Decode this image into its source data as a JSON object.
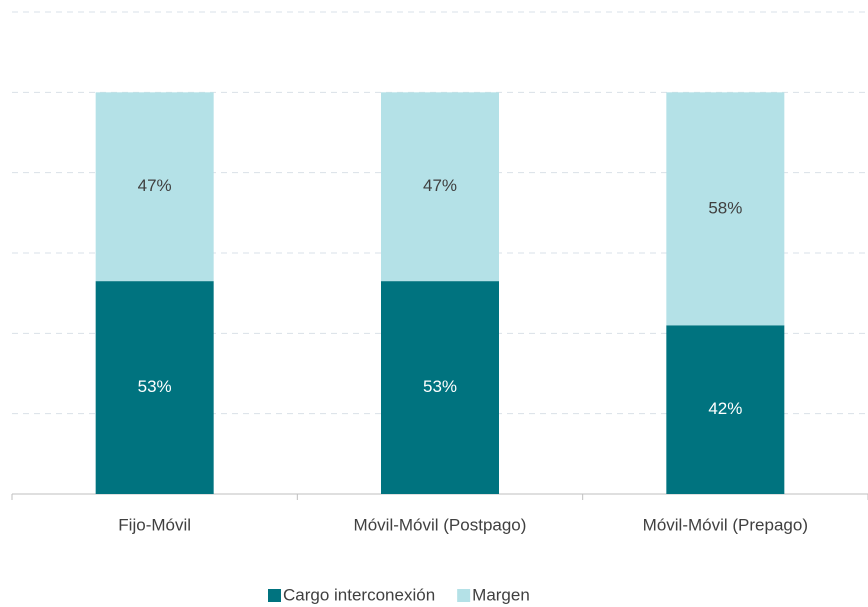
{
  "chart_data": {
    "type": "stacked_bar",
    "categories": [
      "Fijo-Móvil",
      "Móvil-Móvil (Postpago)",
      "Móvil-Móvil (Prepago)"
    ],
    "series": [
      {
        "name": "Cargo interconexión",
        "color": "#00737f",
        "values": [
          53,
          53,
          42
        ],
        "value_labels": [
          "53%",
          "53%",
          "42%"
        ]
      },
      {
        "name": "Margen",
        "color": "#b4e1e7",
        "values": [
          47,
          47,
          58
        ],
        "value_labels": [
          "47%",
          "47%",
          "58%"
        ]
      }
    ],
    "ylim": [
      0,
      120
    ],
    "yticks": [
      0,
      20,
      40,
      60,
      80,
      100,
      120
    ],
    "grid": true,
    "legend": "bottom"
  }
}
